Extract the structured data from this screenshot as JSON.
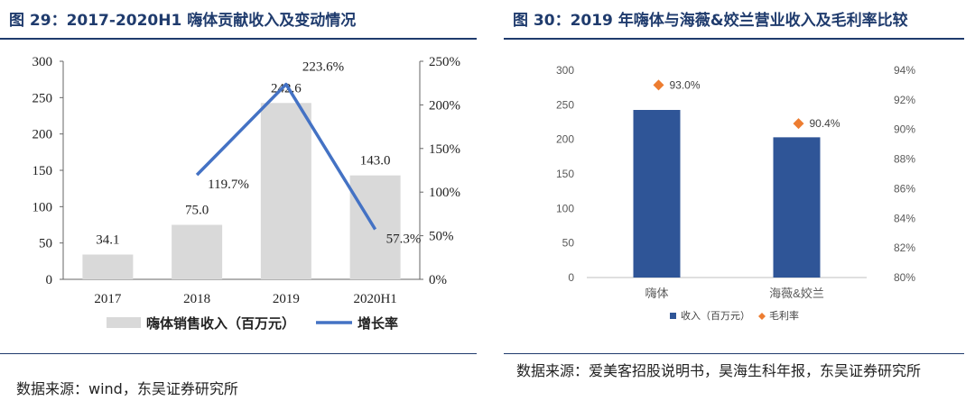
{
  "left": {
    "title": "图 29：2017-2020H1 嗨体贡献收入及变动情况",
    "source": "数据来源：wind，东吴证券研究所",
    "chart_data": {
      "type": "bar",
      "categories": [
        "2017",
        "2018",
        "2019",
        "2020H1"
      ],
      "series": [
        {
          "name": "嗨体销售收入（百万元）",
          "type": "bar",
          "axis": "left",
          "values": [
            34.1,
            75.0,
            242.6,
            143.0
          ],
          "labels": [
            "34.1",
            "75.0",
            "242.6",
            "143.0"
          ]
        },
        {
          "name": "增长率",
          "type": "line",
          "axis": "right",
          "values": [
            null,
            119.7,
            223.6,
            57.3
          ],
          "labels": [
            "",
            "119.7%",
            "223.6%",
            "57.3%"
          ]
        }
      ],
      "y_left": {
        "min": 0,
        "max": 300,
        "ticks": [
          "0",
          "50",
          "100",
          "150",
          "200",
          "250",
          "300"
        ]
      },
      "y_right": {
        "min": 0,
        "max": 250,
        "ticks": [
          "0%",
          "50%",
          "100%",
          "150%",
          "200%",
          "250%"
        ]
      },
      "colors": {
        "bar": "#d9d9d9",
        "line": "#4472c4"
      },
      "legend_position": "bottom"
    }
  },
  "right": {
    "title": "图 30：2019 年嗨体与海薇&姣兰营业收入及毛利率比较",
    "source": "数据来源：爱美客招股说明书，昊海生科年报，东吴证券研究所",
    "chart_data": {
      "type": "bar",
      "categories": [
        "嗨体",
        "海薇&姣兰"
      ],
      "series": [
        {
          "name": "收入（百万元）",
          "type": "bar",
          "axis": "left",
          "values": [
            242.6,
            203
          ]
        },
        {
          "name": "毛利率",
          "type": "scatter",
          "axis": "right",
          "values": [
            93.0,
            90.4
          ],
          "labels": [
            "93.0%",
            "90.4%"
          ]
        }
      ],
      "y_left": {
        "min": 0,
        "max": 300,
        "ticks": [
          "0",
          "50",
          "100",
          "150",
          "200",
          "250",
          "300"
        ]
      },
      "y_right": {
        "min": 80,
        "max": 94,
        "ticks": [
          "80%",
          "82%",
          "84%",
          "86%",
          "88%",
          "90%",
          "92%",
          "94%"
        ]
      },
      "colors": {
        "bar": "#2f5597",
        "marker": "#ed7d31"
      },
      "legend_position": "bottom"
    }
  }
}
